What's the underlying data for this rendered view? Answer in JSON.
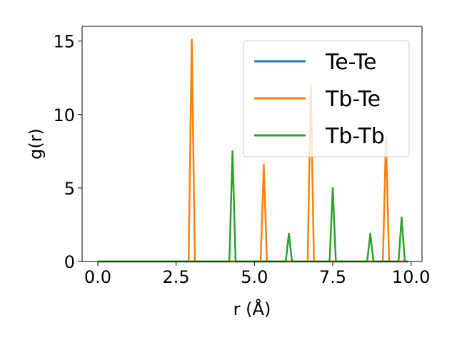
{
  "chart_data": {
    "type": "line",
    "title": "",
    "xlabel": "r (Å)",
    "ylabel": "g(r)",
    "xlim": [
      -0.5,
      10.35
    ],
    "ylim": [
      0,
      16
    ],
    "xticks": [
      0.0,
      2.5,
      5.0,
      7.5,
      10.0
    ],
    "xtick_labels": [
      "0.0",
      "2.5",
      "5.0",
      "7.5",
      "10.0"
    ],
    "yticks": [
      0,
      5,
      10,
      15
    ],
    "ytick_labels": [
      "0",
      "5",
      "10",
      "15"
    ],
    "grid": false,
    "legend_position": "top-right",
    "colors": {
      "Te-Te": "#1f77b4",
      "Tb-Te": "#ff7f0e",
      "Tb-Tb": "#2ca02c"
    },
    "series": [
      {
        "name": "Te-Te",
        "color": "#1f77b4",
        "x": [
          0.0,
          9.9
        ],
        "y": [
          0,
          0
        ]
      },
      {
        "name": "Tb-Te",
        "color": "#ff7f0e",
        "x": [
          0.0,
          2.9,
          3.0,
          3.1,
          5.2,
          5.3,
          5.4,
          6.7,
          6.8,
          6.9,
          9.1,
          9.2,
          9.3,
          9.9
        ],
        "y": [
          0,
          0,
          15.1,
          0,
          0,
          6.6,
          0,
          0,
          12.0,
          0,
          0,
          8.4,
          0,
          0
        ]
      },
      {
        "name": "Tb-Tb",
        "color": "#2ca02c",
        "x": [
          0.0,
          4.2,
          4.3,
          4.4,
          6.0,
          6.1,
          6.2,
          7.4,
          7.5,
          7.6,
          8.6,
          8.7,
          8.8,
          9.6,
          9.7,
          9.8,
          9.9
        ],
        "y": [
          0,
          0,
          7.5,
          0,
          0,
          1.9,
          0,
          0,
          5.0,
          0,
          0,
          1.9,
          0,
          0,
          3.0,
          0,
          0
        ]
      }
    ]
  }
}
